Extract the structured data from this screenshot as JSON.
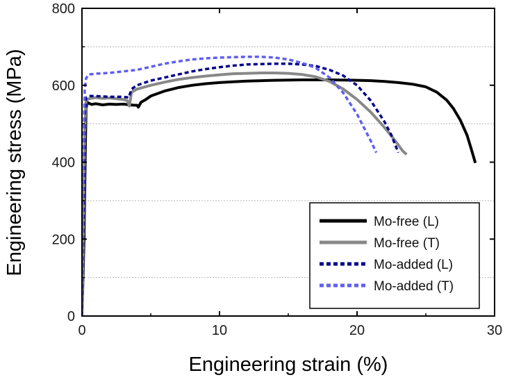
{
  "chart_data": {
    "type": "line",
    "title": "",
    "xlabel": "Engineering strain (%)",
    "ylabel": "Engineering stress (MPa)",
    "xlim": [
      0,
      30
    ],
    "ylim": [
      0,
      800
    ],
    "xticks": [
      0,
      10,
      20,
      30
    ],
    "yticks": [
      0,
      200,
      400,
      600,
      800
    ],
    "minor_grid_y": [
      100,
      300,
      500,
      700
    ],
    "grid": "horizontal dashed at minor ticks",
    "legend_position": "bottom-right",
    "series": [
      {
        "name": "Mo-free (L)",
        "color": "#000000",
        "style": "solid",
        "x": [
          0,
          0.15,
          0.25,
          0.3,
          0.4,
          0.7,
          1.0,
          1.5,
          2.0,
          2.5,
          3.0,
          3.5,
          3.8,
          4.0,
          4.1,
          4.3,
          4.6,
          5.0,
          6.0,
          7.0,
          8.0,
          9.0,
          10.0,
          11.0,
          12.0,
          14.0,
          16.0,
          18.0,
          20.0,
          21.0,
          22.0,
          23.0,
          24.0,
          25.0,
          25.8,
          26.5,
          27.0,
          27.5,
          28.0,
          28.3,
          28.6
        ],
        "y": [
          0,
          200,
          450,
          540,
          555,
          550,
          552,
          549,
          551,
          550,
          551,
          549,
          548,
          548,
          543,
          556,
          562,
          572,
          585,
          594,
          600,
          604,
          607,
          609,
          611,
          613,
          614,
          614,
          613,
          612,
          610,
          607,
          603,
          596,
          582,
          562,
          540,
          510,
          470,
          435,
          398
        ]
      },
      {
        "name": "Mo-free (T)",
        "color": "#888888",
        "style": "solid",
        "x": [
          0,
          0.12,
          0.2,
          0.3,
          0.5,
          1.0,
          1.5,
          2.0,
          2.5,
          3.0,
          3.3,
          3.45,
          3.6,
          4.0,
          5.0,
          6.0,
          7.0,
          8.0,
          9.0,
          10.0,
          11.0,
          12.0,
          13.0,
          14.0,
          15.0,
          16.0,
          17.0,
          18.0,
          19.0,
          20.0,
          21.0,
          22.0,
          22.5,
          23.0,
          23.3,
          23.6
        ],
        "y": [
          0,
          250,
          480,
          560,
          565,
          568,
          566,
          567,
          565,
          563,
          560,
          546,
          582,
          590,
          600,
          608,
          615,
          620,
          624,
          627,
          630,
          631,
          632,
          632,
          631,
          628,
          622,
          610,
          590,
          563,
          530,
          490,
          468,
          445,
          430,
          420
        ]
      },
      {
        "name": "Mo-added (L)",
        "color": "#00008b",
        "style": "dotted",
        "x": [
          0,
          0.12,
          0.2,
          0.3,
          0.5,
          1.0,
          2.0,
          3.0,
          3.4,
          3.6,
          4.0,
          5.0,
          6.0,
          7.0,
          8.0,
          9.0,
          10.0,
          11.0,
          12.0,
          13.0,
          14.0,
          15.0,
          16.0,
          17.0,
          18.0,
          19.0,
          20.0,
          21.0,
          22.0,
          22.5,
          23.0
        ],
        "y": [
          0,
          300,
          520,
          568,
          572,
          572,
          570,
          570,
          568,
          590,
          600,
          612,
          620,
          628,
          636,
          642,
          647,
          651,
          654,
          655,
          656,
          656,
          654,
          650,
          640,
          625,
          600,
          560,
          505,
          470,
          425
        ]
      },
      {
        "name": "Mo-added (T)",
        "color": "#5f5ff0",
        "style": "dotted",
        "x": [
          0,
          0.1,
          0.2,
          0.3,
          0.5,
          1.0,
          2.0,
          3.0,
          4.0,
          5.0,
          6.0,
          7.0,
          8.0,
          9.0,
          10.0,
          11.0,
          12.0,
          13.0,
          14.0,
          15.0,
          16.0,
          17.0,
          18.0,
          19.0,
          20.0,
          20.5,
          21.0,
          21.4
        ],
        "y": [
          0,
          400,
          590,
          618,
          628,
          630,
          632,
          636,
          640,
          648,
          656,
          662,
          667,
          670,
          672,
          673,
          674,
          674,
          672,
          667,
          658,
          645,
          620,
          580,
          525,
          490,
          455,
          425
        ]
      }
    ]
  }
}
